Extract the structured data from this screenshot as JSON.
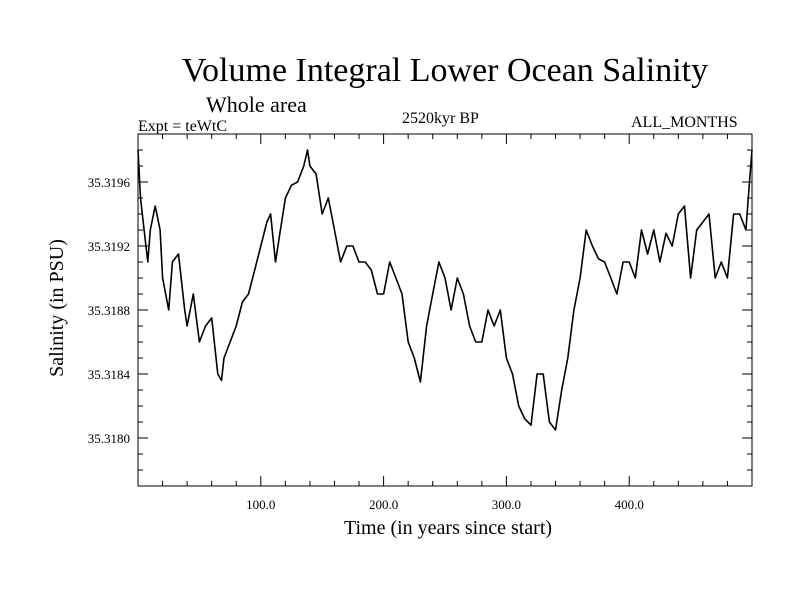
{
  "header": {
    "title": "Volume Integral Lower Ocean Salinity",
    "subtitle": "Whole area",
    "experiment": "Expt = teWtC",
    "period": "2520kyr BP",
    "months": "ALL_MONTHS"
  },
  "chart_data": {
    "type": "line",
    "title": "Volume Integral Lower Ocean Salinity",
    "subtitle": "Whole area",
    "xlabel": "Time (in years since start)",
    "ylabel": "Salinity (in PSU)",
    "xlim": [
      0,
      500
    ],
    "ylim": [
      35.3177,
      35.3199
    ],
    "xticks": [
      100,
      200,
      300,
      400
    ],
    "xtick_labels": [
      "100.0",
      "200.0",
      "300.0",
      "400.0"
    ],
    "yticks": [
      35.318,
      35.3184,
      35.3188,
      35.3192,
      35.3196
    ],
    "ytick_labels": [
      "35.3180",
      "35.3184",
      "35.3188",
      "35.3192",
      "35.3196"
    ],
    "series": [
      {
        "name": "Salinity",
        "color": "#000000",
        "x": [
          0,
          2,
          5,
          8,
          10,
          14,
          18,
          20,
          25,
          28,
          33,
          38,
          40,
          45,
          50,
          55,
          60,
          65,
          68,
          70,
          75,
          80,
          85,
          90,
          95,
          100,
          105,
          108,
          112,
          116,
          120,
          125,
          130,
          135,
          138,
          140,
          145,
          150,
          155,
          160,
          165,
          170,
          175,
          180,
          185,
          190,
          195,
          200,
          205,
          210,
          215,
          220,
          225,
          230,
          235,
          240,
          245,
          250,
          255,
          260,
          265,
          270,
          275,
          280,
          285,
          290,
          295,
          300,
          305,
          310,
          315,
          320,
          325,
          330,
          335,
          340,
          345,
          350,
          355,
          360,
          365,
          370,
          375,
          380,
          385,
          390,
          395,
          400,
          405,
          410,
          415,
          420,
          425,
          430,
          435,
          440,
          445,
          450,
          455,
          460,
          465,
          470,
          475,
          480,
          485,
          490,
          495,
          498,
          500
        ],
        "y": [
          35.3198,
          35.3195,
          35.3193,
          35.3191,
          35.3193,
          35.31945,
          35.3193,
          35.319,
          35.3188,
          35.3191,
          35.31915,
          35.3188,
          35.3187,
          35.3189,
          35.3186,
          35.3187,
          35.31875,
          35.3184,
          35.31836,
          35.3185,
          35.3186,
          35.3187,
          35.31885,
          35.3189,
          35.31905,
          35.3192,
          35.31935,
          35.3194,
          35.3191,
          35.3193,
          35.3195,
          35.31958,
          35.3196,
          35.3197,
          35.3198,
          35.3197,
          35.31965,
          35.3194,
          35.3195,
          35.3193,
          35.3191,
          35.3192,
          35.3192,
          35.3191,
          35.3191,
          35.31905,
          35.3189,
          35.3189,
          35.3191,
          35.319,
          35.3189,
          35.3186,
          35.3185,
          35.31835,
          35.3187,
          35.3189,
          35.3191,
          35.319,
          35.3188,
          35.319,
          35.3189,
          35.3187,
          35.3186,
          35.3186,
          35.3188,
          35.3187,
          35.3188,
          35.3185,
          35.3184,
          35.3182,
          35.31812,
          35.31808,
          35.3184,
          35.3184,
          35.3181,
          35.31805,
          35.3183,
          35.3185,
          35.3188,
          35.319,
          35.3193,
          35.3192,
          35.31912,
          35.3191,
          35.319,
          35.3189,
          35.3191,
          35.3191,
          35.319,
          35.3193,
          35.31915,
          35.3193,
          35.3191,
          35.31928,
          35.3192,
          35.3194,
          35.31945,
          35.319,
          35.3193,
          35.31935,
          35.3194,
          35.319,
          35.3191,
          35.319,
          35.3194,
          35.3194,
          35.3193,
          35.3196,
          35.3198
        ]
      }
    ]
  }
}
